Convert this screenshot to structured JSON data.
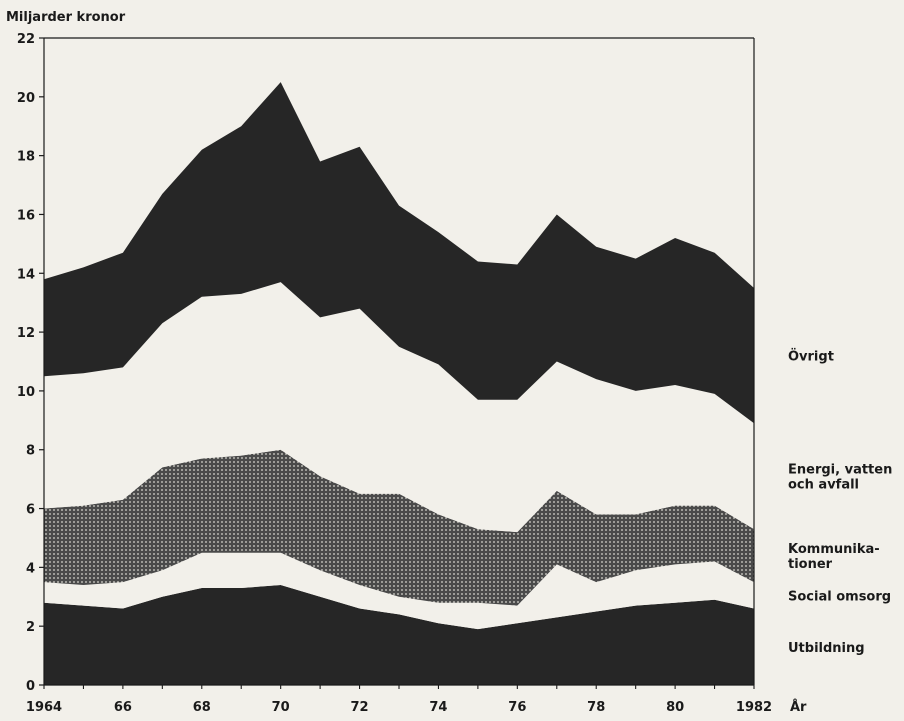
{
  "chart_data": {
    "type": "area",
    "stacked": true,
    "ylabel": "Miljarder kronor",
    "xlabel": "År",
    "ylim": [
      0,
      22
    ],
    "xlim": [
      1964,
      1982
    ],
    "yticks": [
      0,
      2,
      4,
      6,
      8,
      10,
      12,
      14,
      16,
      18,
      20,
      22
    ],
    "xticks": [
      {
        "value": 1964,
        "label": "1964"
      },
      {
        "value": 1966,
        "label": "66"
      },
      {
        "value": 1968,
        "label": "68"
      },
      {
        "value": 1970,
        "label": "70"
      },
      {
        "value": 1972,
        "label": "72"
      },
      {
        "value": 1974,
        "label": "74"
      },
      {
        "value": 1976,
        "label": "76"
      },
      {
        "value": 1978,
        "label": "78"
      },
      {
        "value": 1980,
        "label": "80"
      },
      {
        "value": 1982,
        "label": "1982"
      }
    ],
    "grid": false,
    "legend_placement": "right",
    "x": [
      1964,
      1965,
      1966,
      1967,
      1968,
      1969,
      1970,
      1971,
      1972,
      1973,
      1974,
      1975,
      1976,
      1977,
      1978,
      1979,
      1980,
      1981,
      1982
    ],
    "series": [
      {
        "name": "Utbildning",
        "fill": "solid-dark",
        "values": [
          2.8,
          2.7,
          2.6,
          3.0,
          3.3,
          3.3,
          3.4,
          3.0,
          2.6,
          2.4,
          2.1,
          1.9,
          2.1,
          2.3,
          2.5,
          2.7,
          2.8,
          2.9,
          2.6
        ]
      },
      {
        "name": "Social omsorg",
        "fill": "light",
        "values": [
          0.7,
          0.7,
          0.9,
          0.9,
          1.2,
          1.2,
          1.1,
          0.9,
          0.8,
          0.6,
          0.7,
          0.9,
          0.6,
          1.8,
          1.0,
          1.2,
          1.3,
          1.3,
          0.9
        ]
      },
      {
        "name": "Kommunikationer",
        "fill": "dotted",
        "values": [
          2.5,
          2.7,
          2.8,
          3.5,
          3.2,
          3.3,
          3.5,
          3.2,
          3.1,
          3.5,
          3.0,
          2.5,
          2.5,
          2.5,
          2.3,
          1.9,
          2.0,
          1.9,
          1.8
        ]
      },
      {
        "name": "Energi, vatten och avfall",
        "fill": "light",
        "values": [
          4.5,
          4.5,
          4.5,
          4.9,
          5.5,
          5.5,
          5.7,
          5.4,
          6.3,
          5.0,
          5.1,
          4.4,
          4.5,
          4.4,
          4.6,
          4.2,
          4.1,
          3.8,
          3.6
        ]
      },
      {
        "name": "Övrigt",
        "fill": "solid-dark",
        "values": [
          3.3,
          3.6,
          3.9,
          4.4,
          5.0,
          5.7,
          6.8,
          5.3,
          5.5,
          4.8,
          4.5,
          4.7,
          4.6,
          5.0,
          4.5,
          4.5,
          5.0,
          4.8,
          4.6
        ]
      }
    ],
    "legend_labels": [
      {
        "series": "Övrigt",
        "lines": [
          "Övrigt"
        ]
      },
      {
        "series": "Energi, vatten och avfall",
        "lines": [
          "Energi, vatten",
          "och avfall"
        ]
      },
      {
        "series": "Kommunikationer",
        "lines": [
          "Kommunika-",
          "tioner"
        ]
      },
      {
        "series": "Social omsorg",
        "lines": [
          "Social omsorg"
        ]
      },
      {
        "series": "Utbildning",
        "lines": [
          "Utbildning"
        ]
      }
    ],
    "colors": {
      "dark": "#262626",
      "light": "#f2f0ea",
      "dot_bg": "#4a4a4a",
      "dot": "#d8d6cf",
      "axis": "#1a1a1a"
    }
  }
}
